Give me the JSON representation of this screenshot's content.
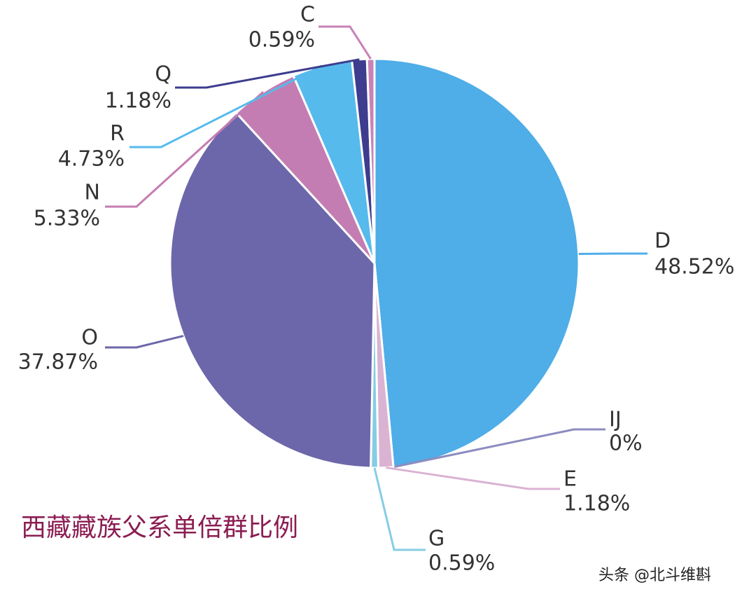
{
  "chart_data": {
    "type": "pie",
    "title": "西藏藏族父系单倍群比例",
    "watermark": "头条 @北斗维斟",
    "categories": [
      "D",
      "IJ",
      "E",
      "G",
      "O",
      "N",
      "R",
      "Q",
      "C"
    ],
    "values": [
      48.52,
      0,
      1.18,
      0.59,
      37.87,
      5.33,
      4.73,
      1.18,
      0.59
    ],
    "value_labels": [
      "48.52%",
      "0%",
      "1.18%",
      "0.59%",
      "37.87%",
      "5.33%",
      "4.73%",
      "1.18%",
      "0.59%"
    ],
    "colors": [
      "#4fade7",
      "#8c8cc0",
      "#dab3d3",
      "#86cde3",
      "#6c67aa",
      "#c47db2",
      "#56baec",
      "#3e3c8e",
      "#c882b8"
    ]
  }
}
